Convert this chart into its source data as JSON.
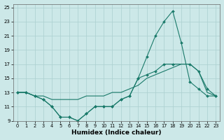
{
  "xlabel": "Humidex (Indice chaleur)",
  "xlim": [
    -0.5,
    23.5
  ],
  "ylim": [
    9,
    25.5
  ],
  "xticks": [
    0,
    1,
    2,
    3,
    4,
    5,
    6,
    7,
    8,
    9,
    10,
    11,
    12,
    13,
    14,
    15,
    16,
    17,
    18,
    19,
    20,
    21,
    22,
    23
  ],
  "yticks": [
    9,
    11,
    13,
    15,
    17,
    19,
    21,
    23,
    25
  ],
  "bg_color": "#cce8e8",
  "grid_color": "#aacfcf",
  "line_color": "#1a7a6a",
  "line1_x": [
    0,
    1,
    2,
    3,
    4,
    5,
    6,
    7,
    8,
    9,
    10,
    11,
    12,
    13,
    14,
    15,
    16,
    17,
    18,
    19,
    20,
    21,
    22,
    23
  ],
  "line1_y": [
    13,
    13,
    12.5,
    12,
    11,
    9.5,
    9.5,
    9,
    10,
    11,
    11,
    11,
    12,
    12.5,
    15,
    18,
    21,
    23,
    24.5,
    20,
    14.5,
    13.5,
    12.5,
    12.5
  ],
  "line2_x": [
    0,
    1,
    2,
    3,
    4,
    5,
    6,
    7,
    8,
    9,
    10,
    11,
    12,
    13,
    14,
    15,
    16,
    17,
    18,
    20,
    21,
    22,
    23
  ],
  "line2_y": [
    13,
    13,
    12.5,
    12,
    11,
    9.5,
    9.5,
    9,
    10,
    11,
    11,
    11,
    12,
    12.5,
    15,
    15.5,
    16,
    17,
    17,
    17,
    16,
    13.5,
    12.5
  ],
  "line3_x": [
    0,
    1,
    2,
    3,
    4,
    5,
    6,
    7,
    8,
    9,
    10,
    11,
    12,
    13,
    14,
    15,
    16,
    17,
    18,
    19,
    20,
    21,
    22,
    23
  ],
  "line3_y": [
    13,
    13,
    12.5,
    12.5,
    12,
    12,
    12,
    12,
    12.5,
    12.5,
    12.5,
    13,
    13,
    13.5,
    14,
    15,
    15.5,
    16,
    16.5,
    17,
    17,
    16,
    13,
    12.5
  ]
}
